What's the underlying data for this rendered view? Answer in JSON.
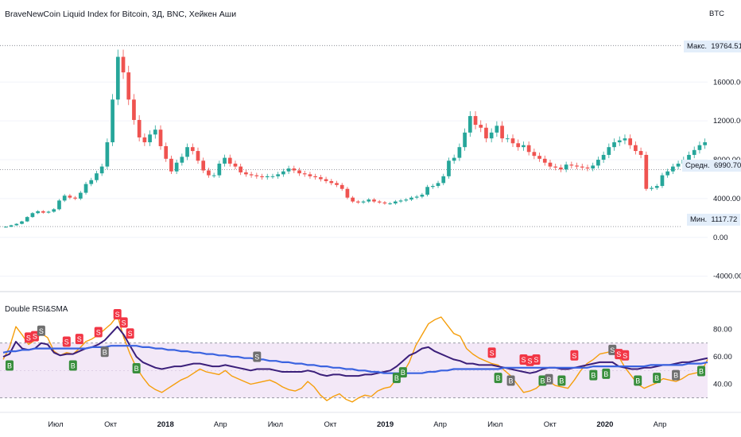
{
  "header": {
    "title": "BraveNewCoin Liquid Index for Bitcoin, 3Д, BNC, Хейкен Аши",
    "currency": "BTC",
    "indicator_name": "Double RSI&SMA"
  },
  "markers": {
    "max_label": "Макс.",
    "max_value": "19764.51",
    "avg_label": "Средн.",
    "avg_value": "6990.70",
    "min_label": "Мин.",
    "min_value": "1117.72"
  },
  "colors": {
    "up": "#26a69a",
    "down": "#ef5350",
    "rsi_fast": "#f59e0b",
    "rsi_slow": "#3b1f7a",
    "sma": "#3b63e0",
    "band_fill": "#f3e8f7",
    "buy": "#388e3c",
    "sell": "#f23645",
    "gray": "#6f6f6f"
  },
  "chart_data": [
    {
      "type": "candlestick",
      "title": "BraveNewCoin Liquid Index for Bitcoin, 3Д, BNC, Хейкен Аши",
      "ylim": [
        -5500,
        22000
      ],
      "yticks": [
        "16000.00",
        "12000.00",
        "8000.00",
        "4000.00",
        "0.00",
        "-4000.00"
      ],
      "xticks": [
        "Июл",
        "Окт",
        "2018",
        "Апр",
        "Июл",
        "Окт",
        "2019",
        "Апр",
        "Июл",
        "Окт",
        "2020",
        "Апр"
      ],
      "price": [
        1100,
        1250,
        1400,
        1650,
        2100,
        2500,
        2700,
        2550,
        2650,
        2900,
        3800,
        4300,
        4100,
        4000,
        4600,
        5500,
        5900,
        6600,
        7300,
        9800,
        14200,
        18600,
        17000,
        14200,
        12100,
        10300,
        9800,
        10600,
        11100,
        9400,
        8100,
        6800,
        7700,
        8300,
        9300,
        8900,
        7900,
        6900,
        6400,
        6400,
        7600,
        8200,
        7600,
        7300,
        6700,
        6500,
        6400,
        6300,
        6200,
        6300,
        6300,
        6500,
        6800,
        7100,
        6900,
        6600,
        6500,
        6300,
        6200,
        6000,
        5800,
        5600,
        5400,
        5000,
        4100,
        3700,
        3600,
        3700,
        3900,
        3700,
        3600,
        3500,
        3500,
        3700,
        3800,
        3900,
        4100,
        4200,
        4400,
        5200,
        5300,
        5600,
        6300,
        7900,
        8200,
        9300,
        10800,
        12500,
        11600,
        11300,
        10200,
        10800,
        11500,
        10200,
        10200,
        9700,
        9300,
        9500,
        8800,
        8400,
        8100,
        7700,
        7300,
        7200,
        7000,
        7500,
        7400,
        7300,
        7200,
        7100,
        7400,
        8000,
        8500,
        9300,
        9800,
        10000,
        10200,
        9500,
        8900,
        8500,
        5000,
        5100,
        5300,
        6400,
        6800,
        7300,
        7600,
        8000,
        8500,
        9000,
        9500,
        9800
      ]
    },
    {
      "type": "line",
      "title": "Double RSI&SMA",
      "ylim": [
        20,
        100
      ],
      "yticks": [
        "80.00",
        "60.00",
        "40.00"
      ],
      "bands": [
        70,
        30
      ],
      "series": [
        {
          "values": [
            58,
            67,
            82,
            76,
            69,
            72,
            77,
            74,
            64,
            61,
            63,
            62,
            66,
            71,
            73,
            76,
            80,
            84,
            90,
            74,
            62,
            52,
            45,
            39,
            36,
            34,
            37,
            40,
            43,
            45,
            48,
            51,
            49,
            48,
            47,
            50,
            46,
            44,
            42,
            40,
            41,
            42,
            43,
            41,
            38,
            36,
            35,
            37,
            42,
            38,
            32,
            28,
            31,
            33,
            29,
            27,
            30,
            32,
            31,
            35,
            37,
            38,
            44,
            48,
            56,
            68,
            76,
            84,
            87,
            89,
            83,
            77,
            75,
            66,
            62,
            59,
            57,
            55,
            54,
            50,
            46,
            40,
            34,
            35,
            37,
            41,
            42,
            39,
            38,
            37,
            43,
            50,
            55,
            58,
            62,
            63,
            64,
            60,
            52,
            46,
            40,
            37,
            39,
            41,
            44,
            43,
            42,
            44,
            47,
            48,
            49,
            58
          ]
        },
        {
          "values": [
            60,
            62,
            71,
            66,
            65,
            66,
            70,
            69,
            63,
            61,
            62,
            62,
            64,
            66,
            67,
            69,
            72,
            77,
            82,
            76,
            68,
            60,
            56,
            54,
            52,
            51,
            52,
            53,
            53,
            54,
            55,
            55,
            54,
            53,
            53,
            54,
            53,
            52,
            51,
            50,
            51,
            51,
            51,
            50,
            49,
            49,
            49,
            49,
            50,
            49,
            47,
            46,
            47,
            47,
            46,
            46,
            46,
            47,
            47,
            48,
            49,
            50,
            53,
            57,
            61,
            63,
            66,
            67,
            64,
            62,
            60,
            58,
            57,
            55,
            55,
            54,
            54,
            54,
            53,
            52,
            51,
            50,
            49,
            48,
            49,
            51,
            52,
            52,
            51,
            51,
            52,
            53,
            54,
            55,
            56,
            56,
            56,
            53,
            52,
            51,
            51,
            52,
            52,
            53,
            54,
            54,
            55,
            56,
            56,
            57,
            58,
            59
          ]
        },
        {
          "values": [
            63,
            64,
            64,
            65,
            65,
            66,
            66,
            66,
            66,
            66,
            66,
            66,
            66,
            66,
            67,
            67,
            67,
            68,
            68,
            68,
            68,
            68,
            67,
            67,
            66,
            66,
            65,
            65,
            64,
            64,
            63,
            63,
            62,
            62,
            61,
            61,
            60,
            60,
            59,
            59,
            58,
            58,
            57,
            57,
            56,
            56,
            55,
            55,
            54,
            54,
            53,
            53,
            52,
            52,
            51,
            51,
            50,
            50,
            49,
            49,
            48,
            48,
            48,
            48,
            48,
            48,
            48,
            49,
            49,
            50,
            50,
            51,
            51,
            51,
            51,
            51,
            51,
            51,
            51,
            52,
            52,
            52,
            52,
            52,
            52,
            52,
            52,
            52,
            52,
            52,
            52,
            52,
            52,
            53,
            53,
            53,
            53,
            53,
            53,
            53,
            53,
            53,
            54,
            54,
            54,
            54,
            54,
            54,
            55,
            55,
            55,
            56
          ]
        }
      ],
      "signals": [
        {
          "i": 1,
          "type": "B"
        },
        {
          "i": 4,
          "type": "S"
        },
        {
          "i": 5,
          "type": "S"
        },
        {
          "i": 6,
          "type": "S"
        },
        {
          "i": 10,
          "type": "S"
        },
        {
          "i": 11,
          "type": "B"
        },
        {
          "i": 12,
          "type": "S"
        },
        {
          "i": 15,
          "type": "S"
        },
        {
          "i": 16,
          "type": "B"
        },
        {
          "i": 18,
          "type": "S"
        },
        {
          "i": 19,
          "type": "S"
        },
        {
          "i": 20,
          "type": "S"
        },
        {
          "i": 21,
          "type": "B"
        },
        {
          "i": 40,
          "type": "S"
        },
        {
          "i": 62,
          "type": "B"
        },
        {
          "i": 63,
          "type": "B"
        },
        {
          "i": 77,
          "type": "S"
        },
        {
          "i": 78,
          "type": "B"
        },
        {
          "i": 80,
          "type": "B"
        },
        {
          "i": 82,
          "type": "S"
        },
        {
          "i": 83,
          "type": "S"
        },
        {
          "i": 84,
          "type": "S"
        },
        {
          "i": 85,
          "type": "B"
        },
        {
          "i": 86,
          "type": "B"
        },
        {
          "i": 88,
          "type": "B"
        },
        {
          "i": 90,
          "type": "S"
        },
        {
          "i": 93,
          "type": "B"
        },
        {
          "i": 95,
          "type": "B"
        },
        {
          "i": 96,
          "type": "S"
        },
        {
          "i": 97,
          "type": "S"
        },
        {
          "i": 98,
          "type": "S"
        },
        {
          "i": 100,
          "type": "B"
        },
        {
          "i": 103,
          "type": "B"
        },
        {
          "i": 106,
          "type": "B"
        },
        {
          "i": 110,
          "type": "B"
        }
      ]
    }
  ]
}
